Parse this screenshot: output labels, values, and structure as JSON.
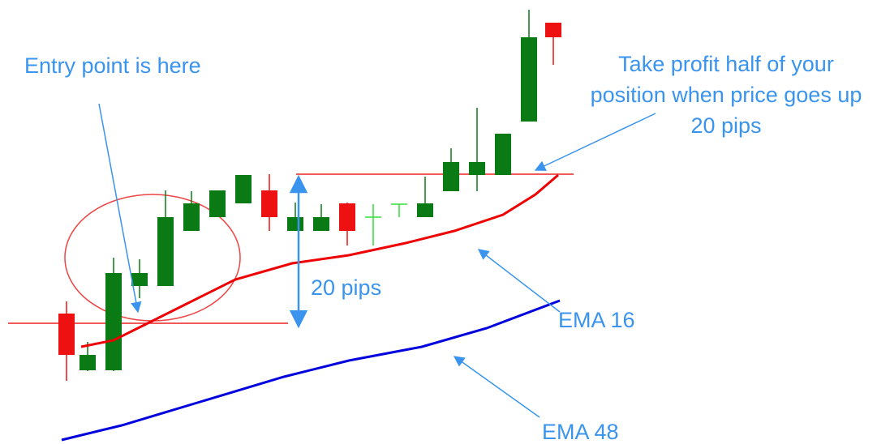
{
  "annotations": {
    "entry": "Entry point is here",
    "take_profit": [
      "Take profit half of your",
      "position when price goes up",
      "20 pips"
    ],
    "pips": "20 pips",
    "ema16": "EMA 16",
    "ema48": "EMA 48"
  }
}
